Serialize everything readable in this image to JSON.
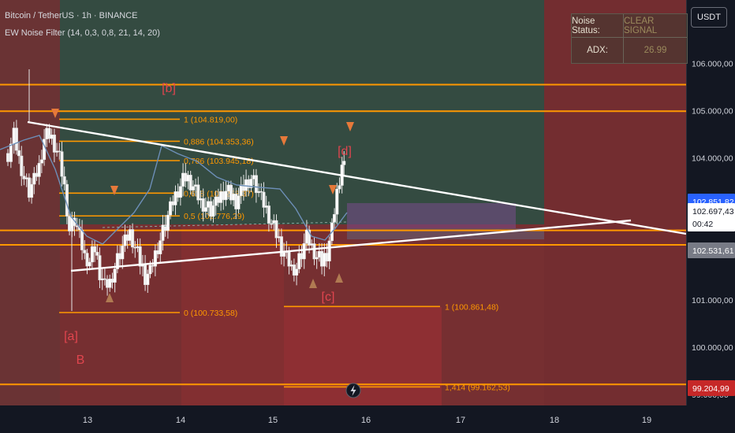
{
  "header": {
    "title": "Bitcoin / TetherUS · 1h · BINANCE",
    "indicator": "EW Noise Filter (14, 0,3, 0,8, 21, 14, 20)"
  },
  "status_table": {
    "noise_label": "Noise Status:",
    "noise_value": "CLEAR SIGNAL",
    "adx_label": "ADX:",
    "adx_value": "26.99"
  },
  "currency_button": "USDT",
  "price_axis": {
    "ticks": [
      {
        "label": "106.000,00",
        "value": 106000
      },
      {
        "label": "105.000,00",
        "value": 105000
      },
      {
        "label": "104.000,00",
        "value": 104000
      },
      {
        "label": "101.000,00",
        "value": 101000
      },
      {
        "label": "100.000,00",
        "value": 100000
      },
      {
        "label": "99.000,00",
        "value": 99000
      }
    ],
    "badges": [
      {
        "label": "102.851,82",
        "value": 102851.82,
        "color": "#2962ff",
        "text": "#ffffff"
      },
      {
        "label": "102.697,43",
        "sub": "00:42",
        "value": 102697.43,
        "color": "#ffffff",
        "text": "#131722"
      },
      {
        "label": "102.531,61",
        "value": 102531.61,
        "color": "#787b86",
        "text": "#ffffff"
      },
      {
        "label": "99.204,99",
        "value": 99204.99,
        "color": "#c62828",
        "text": "#ffffff"
      }
    ]
  },
  "time_axis": {
    "ticks": [
      {
        "label": "13",
        "hours": 24
      },
      {
        "label": "14",
        "hours": 48
      },
      {
        "label": "15",
        "hours": 72
      },
      {
        "label": "16",
        "hours": 96
      },
      {
        "label": "17",
        "hours": 120
      },
      {
        "label": "18",
        "hours": 144
      },
      {
        "label": "19",
        "hours": 168
      }
    ]
  },
  "fib_levels": [
    {
      "label": "1 (104.819,00)",
      "value": 104819
    },
    {
      "label": "0,886 (104.353,36)",
      "value": 104353.36
    },
    {
      "label": "0,786 (103.945,18)",
      "value": 103945.18
    },
    {
      "label": "0,618 (103.258,37)",
      "value": 103258.37
    },
    {
      "label": "0,5 (102.776,29)",
      "value": 102776.29
    },
    {
      "label": "0 (100.733,58)",
      "value": 100733.58
    }
  ],
  "extension_levels": [
    {
      "label": "1 (100.861,48)",
      "value": 100861.48
    },
    {
      "label": "1,414 (99.162,53)",
      "value": 99162.53
    }
  ],
  "horizontal_levels": [
    105550,
    104990,
    102470,
    102165,
    99215
  ],
  "wave_labels": [
    {
      "text": "[b]",
      "t": 40.5,
      "price": 105450
    },
    {
      "text": "[a]",
      "t": 10.7,
      "price": 99900
    },
    {
      "text": "B",
      "t": 12.6,
      "price": 99450
    },
    {
      "text": "[c]",
      "t": 76.8,
      "price": 101050
    },
    {
      "text": "[d]",
      "t": 83.5,
      "price": 104180
    }
  ],
  "colors": {
    "background": "#1e2028",
    "bull_zone": "#2e5a4a",
    "bear_zone": "#8a2c30",
    "fib_line": "#ff9800",
    "trend_line": "#ffffff",
    "wave_label": "#e0454e",
    "signal_marker": "#e6793a"
  }
}
